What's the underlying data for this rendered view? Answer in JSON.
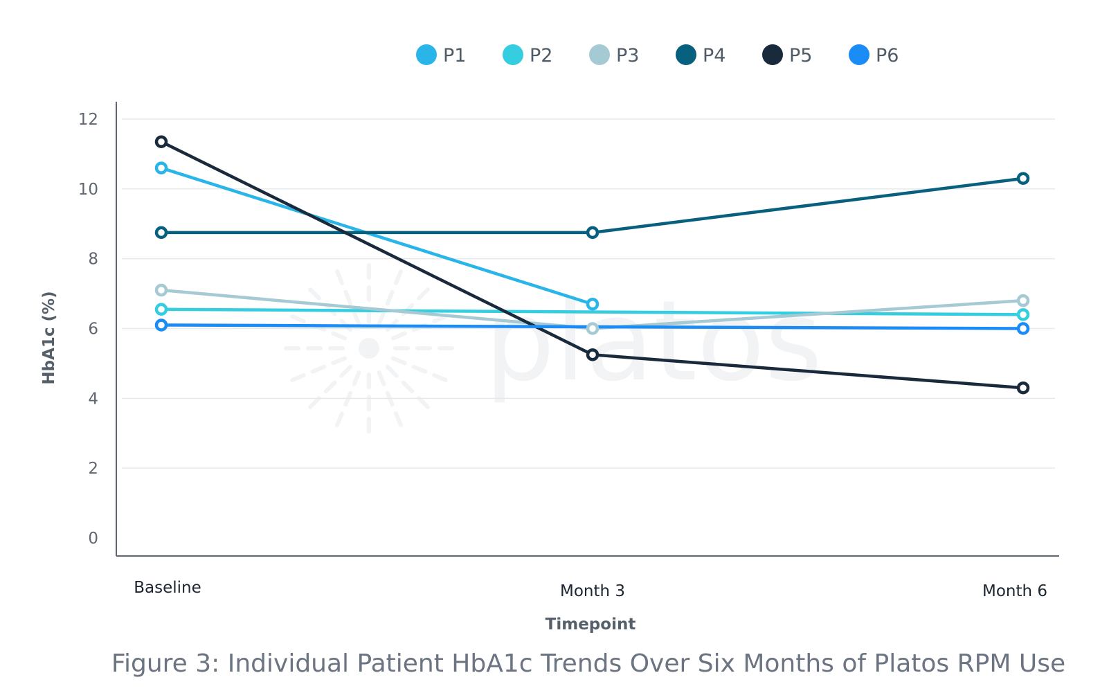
{
  "chart_data": {
    "type": "line",
    "caption": "Figure 3: Individual Patient HbA1c Trends Over Six Months of Platos RPM Use",
    "xlabel": "Timepoint",
    "ylabel": "HbA1c (%)",
    "categories": [
      "Baseline",
      "Month 3",
      "Month 6"
    ],
    "ylim": [
      0,
      12
    ],
    "yticks": [
      0,
      2,
      4,
      6,
      8,
      10,
      12
    ],
    "grid": true,
    "legend_position": "top-center",
    "watermark": "platos",
    "series": [
      {
        "name": "P1",
        "color": "#29b5e8",
        "values": [
          10.6,
          6.7,
          null
        ]
      },
      {
        "name": "P2",
        "color": "#35cde0",
        "values": [
          6.55,
          null,
          6.4
        ]
      },
      {
        "name": "P3",
        "color": "#a6cad4",
        "values": [
          7.1,
          6.0,
          6.8
        ]
      },
      {
        "name": "P4",
        "color": "#07607e",
        "values": [
          8.75,
          8.75,
          10.3
        ]
      },
      {
        "name": "P5",
        "color": "#1a2a3d",
        "values": [
          11.35,
          5.25,
          4.3
        ]
      },
      {
        "name": "P6",
        "color": "#1b8cf5",
        "values": [
          6.1,
          null,
          6.0
        ]
      }
    ]
  }
}
